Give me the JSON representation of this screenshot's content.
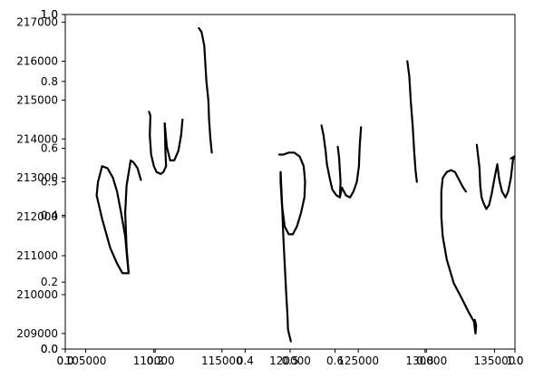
{
  "chart_data": {
    "type": "line",
    "title": "",
    "xlabel": "",
    "ylabel": "",
    "grid": false,
    "legend": "none",
    "line_color": "#000000",
    "xlim": [
      103500,
      136500
    ],
    "ylim": [
      208600,
      217200
    ],
    "x_ticks": [
      105000,
      110000,
      115000,
      120000,
      125000,
      130000,
      135000
    ],
    "x_tick_labels": [
      "105000",
      "110000",
      "115000",
      "120000",
      "125000",
      "130000",
      "135000"
    ],
    "y_ticks": [
      209000,
      210000,
      211000,
      212000,
      213000,
      214000,
      215000,
      216000,
      217000
    ],
    "y_tick_labels": [
      "209000",
      "210000",
      "211000",
      "212000",
      "213000",
      "214000",
      "215000",
      "216000",
      "217000"
    ],
    "overlay_axes": [
      {
        "xlim": [
          0,
          1
        ],
        "ylim": [
          0,
          1
        ],
        "x_ticks": [
          0.0,
          0.2,
          0.4,
          0.6,
          0.8,
          1.0
        ],
        "x_tick_labels": [
          "0.0",
          "0.2",
          "0.4",
          "0.6",
          "0.8",
          "1.0"
        ],
        "y_ticks": [
          0.0,
          0.2,
          0.4,
          0.6,
          0.8,
          1.0
        ],
        "y_tick_labels": [
          "0.0",
          "0.2",
          "0.4",
          "0.6",
          "0.8",
          "1.0"
        ]
      },
      {
        "xlim": [
          0,
          1
        ],
        "ylim": [
          0,
          1
        ],
        "x_ticks": [
          0.0,
          0.5,
          1.0
        ],
        "x_tick_labels": [
          "0.0",
          "0.5",
          "1.0"
        ],
        "y_ticks": [
          0.0,
          0.5,
          1.0
        ],
        "y_tick_labels": [
          "0.0",
          "0.5",
          "1.0"
        ]
      }
    ],
    "series": [
      {
        "points": [
          [
            105900,
            212900
          ],
          [
            106200,
            213300
          ],
          [
            106600,
            213250
          ],
          [
            107000,
            213000
          ],
          [
            107300,
            212650
          ],
          [
            107600,
            212100
          ],
          [
            107900,
            211500
          ],
          [
            108050,
            210900
          ],
          [
            108150,
            210550
          ],
          [
            107700,
            210550
          ],
          [
            107300,
            210800
          ],
          [
            106800,
            211200
          ],
          [
            106200,
            211950
          ],
          [
            105800,
            212550
          ],
          [
            105900,
            212900
          ]
        ]
      },
      {
        "points": [
          [
            108150,
            210550
          ],
          [
            108000,
            211200
          ],
          [
            107900,
            212100
          ],
          [
            108000,
            212800
          ],
          [
            108300,
            213450
          ],
          [
            108500,
            213400
          ],
          [
            108800,
            213250
          ],
          [
            109050,
            212950
          ]
        ]
      },
      {
        "points": [
          [
            109650,
            214700
          ],
          [
            109750,
            214600
          ],
          [
            109700,
            214100
          ],
          [
            109800,
            213600
          ],
          [
            110000,
            213300
          ],
          [
            110200,
            213150
          ],
          [
            110500,
            213100
          ],
          [
            110700,
            213150
          ],
          [
            110900,
            213300
          ],
          [
            110850,
            213650
          ],
          [
            110800,
            214400
          ]
        ]
      },
      {
        "points": [
          [
            110800,
            214400
          ],
          [
            110950,
            213800
          ],
          [
            111200,
            213450
          ],
          [
            111500,
            213450
          ],
          [
            111800,
            213700
          ],
          [
            112000,
            214100
          ],
          [
            112100,
            214500
          ]
        ]
      },
      {
        "points": [
          [
            113300,
            216850
          ],
          [
            113500,
            216750
          ],
          [
            113700,
            216400
          ],
          [
            113850,
            215500
          ],
          [
            114000,
            215000
          ],
          [
            114050,
            214500
          ],
          [
            114150,
            214000
          ],
          [
            114250,
            213650
          ]
        ]
      },
      {
        "points": [
          [
            119200,
            213600
          ],
          [
            119500,
            213600
          ],
          [
            119900,
            213650
          ],
          [
            120300,
            213650
          ],
          [
            120700,
            213550
          ],
          [
            121000,
            213300
          ],
          [
            121100,
            212900
          ],
          [
            121050,
            212500
          ],
          [
            120800,
            212100
          ],
          [
            120500,
            211750
          ],
          [
            120200,
            211550
          ],
          [
            119900,
            211550
          ],
          [
            119600,
            211750
          ],
          [
            119400,
            212300
          ],
          [
            119300,
            212900
          ],
          [
            119300,
            213150
          ]
        ]
      },
      {
        "points": [
          [
            119300,
            213150
          ],
          [
            119400,
            212400
          ],
          [
            119500,
            211500
          ],
          [
            119600,
            210800
          ],
          [
            119700,
            210100
          ],
          [
            119800,
            209500
          ],
          [
            119850,
            209100
          ],
          [
            119950,
            208950
          ],
          [
            120050,
            208800
          ]
        ]
      },
      {
        "points": [
          [
            122300,
            214350
          ],
          [
            122450,
            214100
          ],
          [
            122600,
            213700
          ],
          [
            122700,
            213350
          ],
          [
            122900,
            213000
          ],
          [
            123100,
            212700
          ],
          [
            123400,
            212550
          ],
          [
            123650,
            212500
          ],
          [
            123700,
            212900
          ],
          [
            123600,
            213500
          ],
          [
            123500,
            213800
          ]
        ]
      },
      {
        "points": [
          [
            123650,
            212500
          ],
          [
            123800,
            212750
          ],
          [
            124100,
            212550
          ],
          [
            124400,
            212500
          ],
          [
            124650,
            212650
          ],
          [
            124900,
            212900
          ],
          [
            125050,
            213300
          ],
          [
            125100,
            213800
          ],
          [
            125200,
            214300
          ]
        ]
      },
      {
        "points": [
          [
            128600,
            216000
          ],
          [
            128750,
            215600
          ],
          [
            128850,
            215000
          ],
          [
            129000,
            214300
          ],
          [
            129100,
            213700
          ],
          [
            129200,
            213200
          ],
          [
            129300,
            212900
          ]
        ]
      },
      {
        "points": [
          [
            131100,
            212650
          ],
          [
            131200,
            213000
          ],
          [
            131500,
            213150
          ],
          [
            131800,
            213200
          ],
          [
            132100,
            213150
          ],
          [
            132400,
            212950
          ],
          [
            132700,
            212750
          ],
          [
            132900,
            212650
          ]
        ]
      },
      {
        "points": [
          [
            131100,
            212650
          ],
          [
            131100,
            212000
          ],
          [
            131200,
            211500
          ],
          [
            131500,
            210900
          ],
          [
            132000,
            210300
          ],
          [
            132600,
            209900
          ],
          [
            133100,
            209550
          ],
          [
            133500,
            209300
          ],
          [
            133600,
            209000
          ],
          [
            133650,
            209200
          ],
          [
            133550,
            209350
          ]
        ]
      },
      {
        "points": [
          [
            133700,
            213850
          ],
          [
            133800,
            213550
          ],
          [
            133900,
            213250
          ],
          [
            133950,
            212800
          ],
          [
            134050,
            212500
          ],
          [
            134200,
            212350
          ],
          [
            134400,
            212200
          ],
          [
            134600,
            212300
          ],
          [
            134800,
            212600
          ],
          [
            135000,
            213000
          ],
          [
            135200,
            213350
          ]
        ]
      },
      {
        "points": [
          [
            135200,
            213350
          ],
          [
            135350,
            212950
          ],
          [
            135550,
            212650
          ],
          [
            135800,
            212500
          ],
          [
            136000,
            212650
          ],
          [
            136200,
            213000
          ],
          [
            136350,
            213450
          ],
          [
            136450,
            213550
          ],
          [
            136200,
            213500
          ]
        ]
      }
    ]
  }
}
